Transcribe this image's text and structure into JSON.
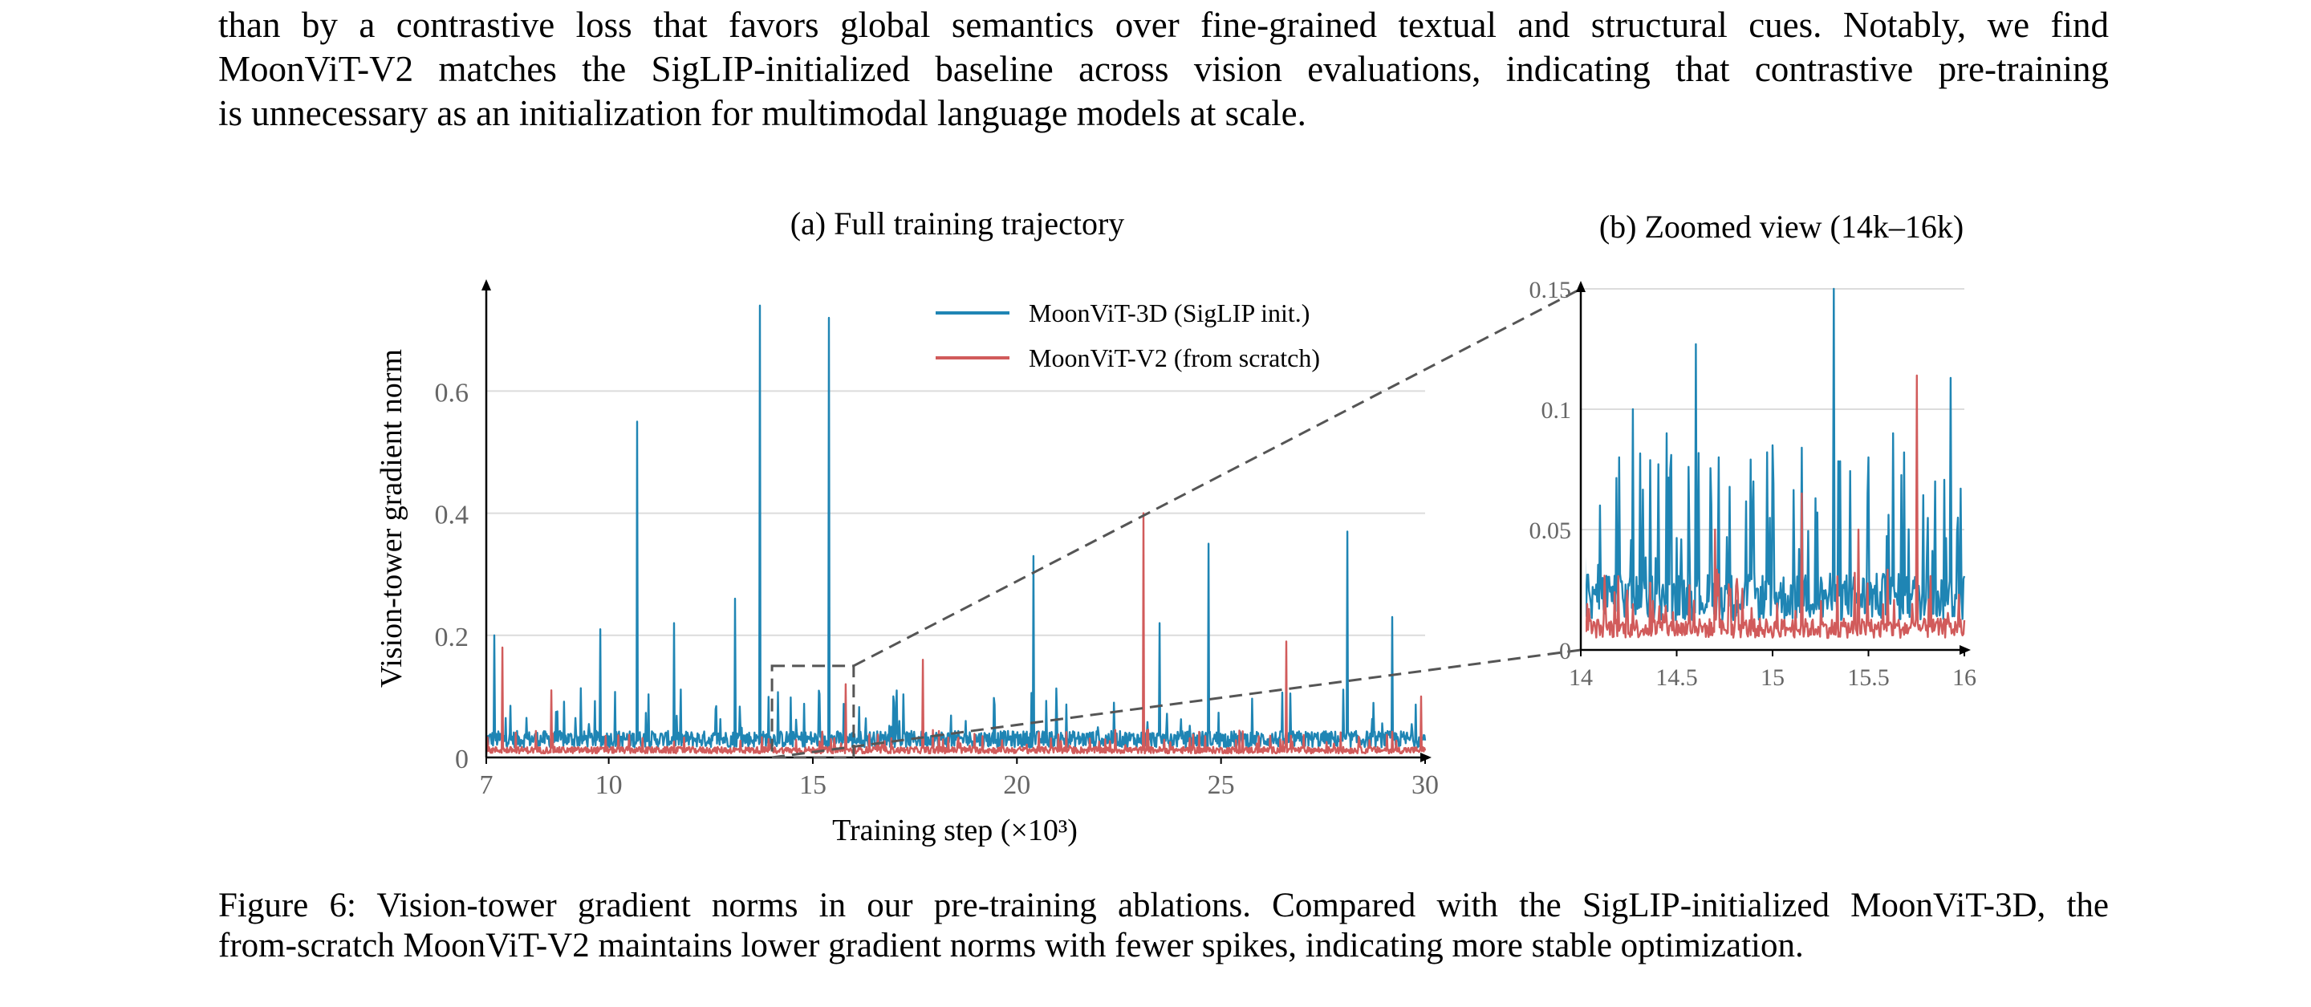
{
  "paragraph": {
    "lines": [
      "than by a contrastive loss that favors global semantics over fine-grained textual and structural cues. Notably, we find",
      "MoonViT-V2 matches the SigLIP-initialized baseline across vision evaluations, indicating that contrastive pre-training",
      "is unnecessary as an initialization for multimodal language models at scale."
    ]
  },
  "chart_data": [
    {
      "type": "line",
      "title": "(a) Full training trajectory",
      "xlabel": "Training step (×10³)",
      "ylabel": "Vision-tower gradient norm",
      "xlim": [
        7,
        30
      ],
      "ylim": [
        0,
        0.77
      ],
      "xticks": [
        "7",
        "10",
        "15",
        "20",
        "25",
        "30"
      ],
      "yticks": [
        "0",
        "0.2",
        "0.4",
        "0.6"
      ],
      "grid": "horizontal",
      "legend": "top-center",
      "series": [
        {
          "name": "MoonViT-3D (SigLIP init.)",
          "color": "#1f85b4",
          "baseline": 0.03,
          "spikes": [
            [
              7.2,
              0.2
            ],
            [
              9.8,
              0.21
            ],
            [
              10.7,
              0.55
            ],
            [
              11.6,
              0.22
            ],
            [
              13.1,
              0.26
            ],
            [
              13.7,
              0.74
            ],
            [
              15.4,
              0.72
            ],
            [
              20.4,
              0.33
            ],
            [
              23.5,
              0.22
            ],
            [
              24.7,
              0.35
            ],
            [
              28.1,
              0.37
            ],
            [
              29.2,
              0.23
            ]
          ]
        },
        {
          "name": "MoonViT-V2 (from scratch)",
          "color": "#d15b5b",
          "baseline": 0.012,
          "spikes": [
            [
              7.4,
              0.18
            ],
            [
              8.6,
              0.11
            ],
            [
              15.8,
              0.12
            ],
            [
              17.7,
              0.16
            ],
            [
              23.1,
              0.4
            ],
            [
              26.6,
              0.19
            ],
            [
              29.9,
              0.1
            ]
          ]
        }
      ]
    },
    {
      "type": "line",
      "title": "(b) Zoomed view (14k–16k)",
      "xlim": [
        14,
        16
      ],
      "ylim": [
        0,
        0.15
      ],
      "xticks": [
        "14",
        "14.5",
        "15",
        "15.5",
        "16"
      ],
      "yticks": [
        "0",
        "0.05",
        "0.1",
        "0.15"
      ],
      "grid": "horizontal",
      "series": [
        {
          "name": "MoonViT-3D (SigLIP init.)",
          "color": "#1f85b4",
          "baseline": 0.022,
          "spikes": [
            [
              14.1,
              0.06
            ],
            [
              14.2,
              0.08
            ],
            [
              14.27,
              0.1
            ],
            [
              14.45,
              0.09
            ],
            [
              14.6,
              0.127
            ],
            [
              14.72,
              0.08
            ],
            [
              14.9,
              0.07
            ],
            [
              15.0,
              0.085
            ],
            [
              15.15,
              0.084
            ],
            [
              15.32,
              0.15
            ],
            [
              15.5,
              0.08
            ],
            [
              15.63,
              0.09
            ],
            [
              15.85,
              0.07
            ],
            [
              15.93,
              0.113
            ],
            [
              15.98,
              0.067
            ]
          ]
        },
        {
          "name": "MoonViT-V2 (from scratch)",
          "color": "#d15b5b",
          "baseline": 0.009,
          "spikes": [
            [
              14.7,
              0.05
            ],
            [
              15.15,
              0.065
            ],
            [
              15.45,
              0.05
            ],
            [
              15.75,
              0.114
            ]
          ]
        }
      ]
    }
  ],
  "caption": {
    "lines": [
      "Figure 6: Vision-tower gradient norms in our pre-training ablations. Compared with the SigLIP-initialized MoonViT-3D, the",
      "from-scratch MoonViT-V2 maintains lower gradient norms with fewer spikes, indicating more stable optimization."
    ]
  }
}
